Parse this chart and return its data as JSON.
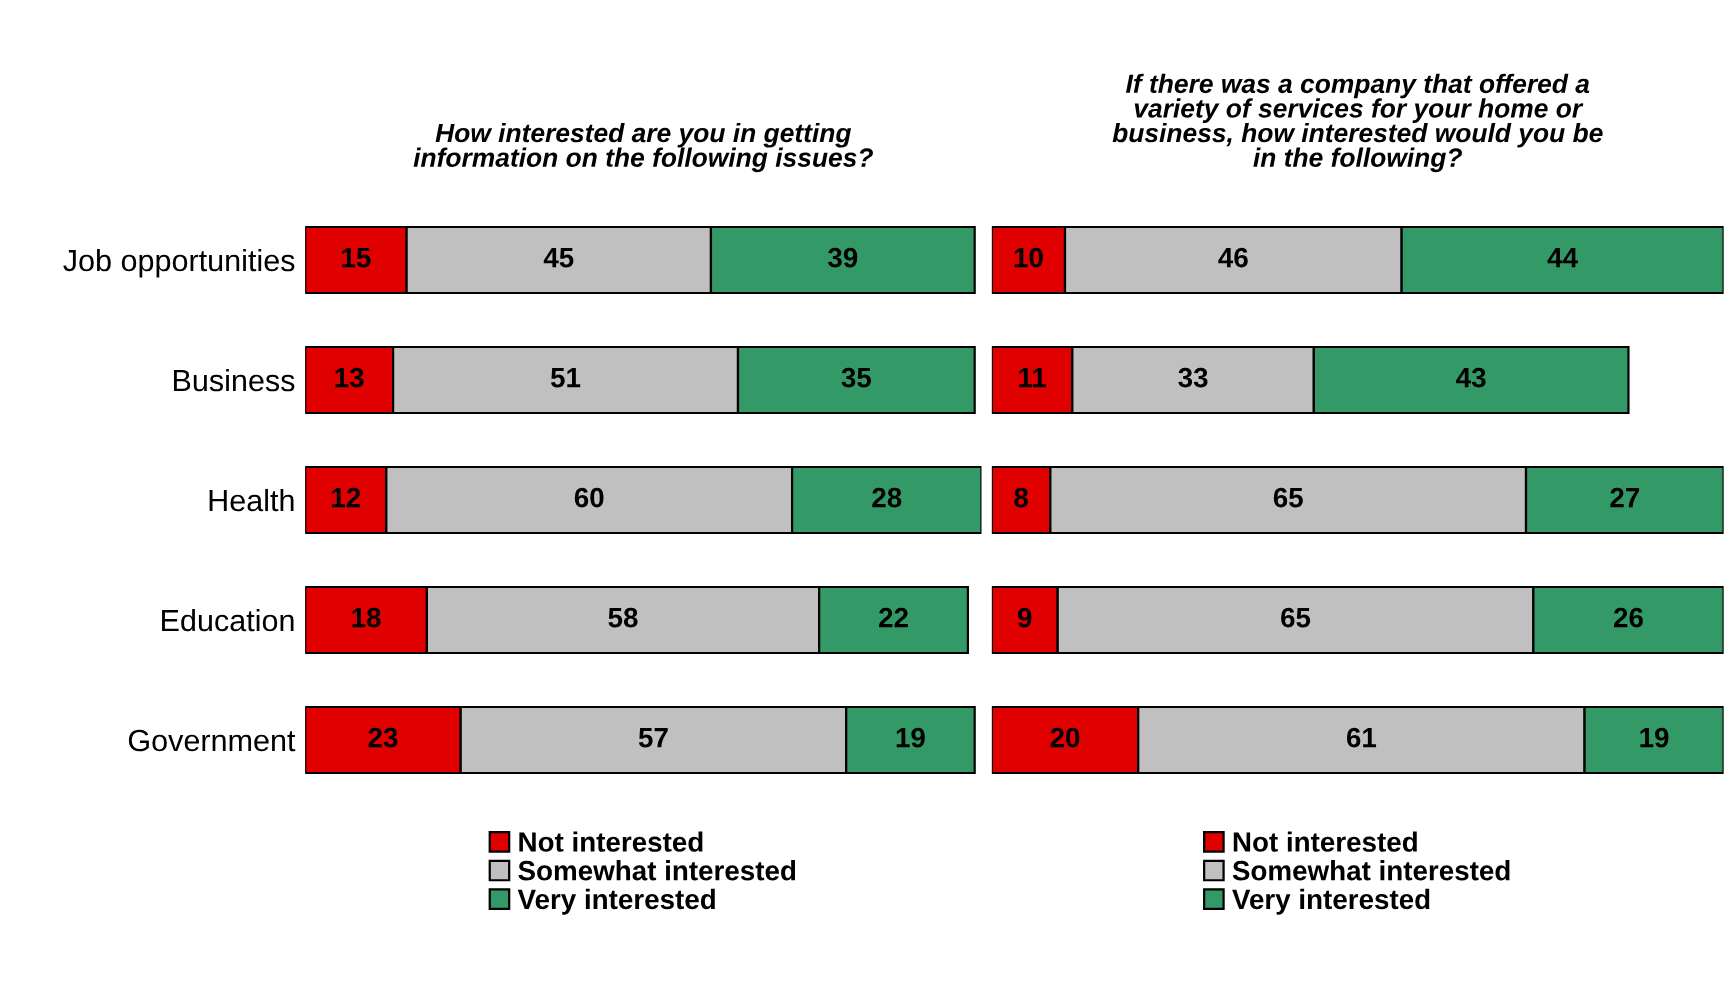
{
  "chart_data": [
    {
      "type": "bar",
      "orientation": "horizontal",
      "stacked": true,
      "data_labels": true,
      "legend": "bottom",
      "title": "How interested are you in getting\ninformation on the following issues?",
      "categories": [
        "Job opportunities",
        "Business",
        "Health",
        "Education",
        "Government"
      ],
      "series": [
        {
          "name": "Not interested",
          "color": "#e00000",
          "values": [
            15,
            13,
            12,
            18,
            23
          ]
        },
        {
          "name": "Somewhat interested",
          "color": "#c0c0c0",
          "values": [
            45,
            51,
            60,
            58,
            57
          ]
        },
        {
          "name": "Very interested",
          "color": "#339966",
          "values": [
            39,
            35,
            28,
            22,
            19
          ]
        }
      ]
    },
    {
      "type": "bar",
      "orientation": "horizontal",
      "stacked": true,
      "data_labels": true,
      "legend": "bottom",
      "title": "If there was a company that offered a\nvariety of services for your home or\nbusiness, how interested would you be\nin the following?",
      "categories": [
        null,
        null,
        null,
        null,
        null
      ],
      "series": [
        {
          "name": "Not interested",
          "color": "#e00000",
          "values": [
            10,
            11,
            8,
            9,
            20
          ]
        },
        {
          "name": "Somewhat interested",
          "color": "#c0c0c0",
          "values": [
            46,
            33,
            65,
            65,
            61
          ]
        },
        {
          "name": "Very interested",
          "color": "#339966",
          "values": [
            44,
            43,
            27,
            26,
            19
          ]
        }
      ]
    }
  ]
}
